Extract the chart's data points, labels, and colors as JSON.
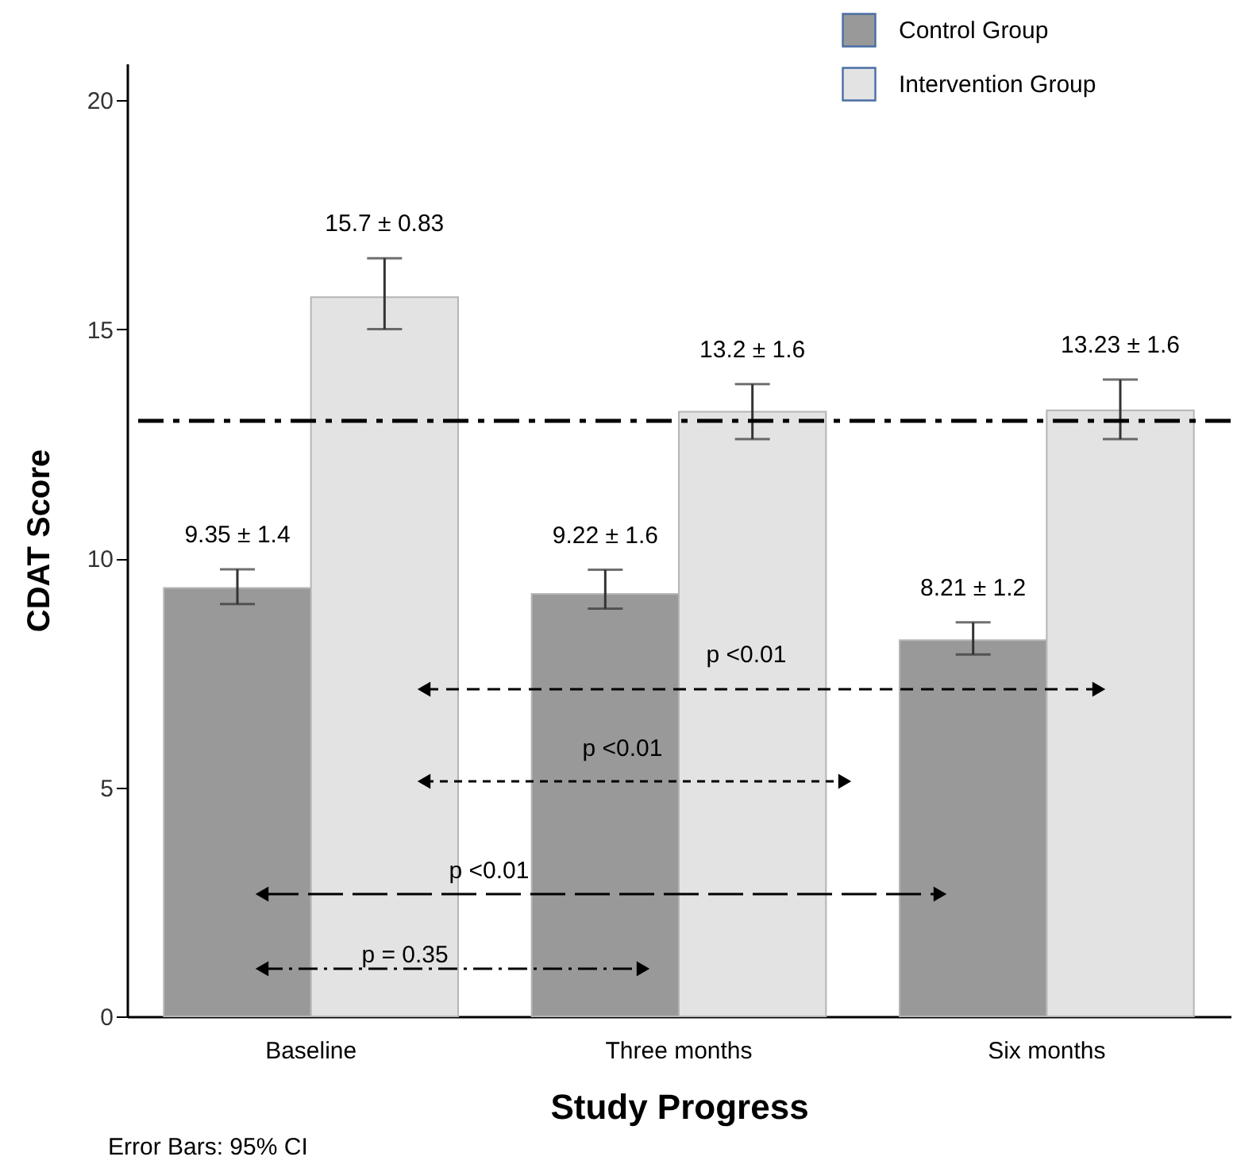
{
  "chart_data": {
    "type": "bar",
    "xlabel": "Study Progress",
    "ylabel": "CDAT Score",
    "categories": [
      "Baseline",
      "Three months",
      "Six months"
    ],
    "series": [
      {
        "name": "Control Group",
        "color": "#999999",
        "values": [
          9.35,
          9.22,
          8.21
        ],
        "errors": [
          [
            9.0,
            9.76
          ],
          [
            8.9,
            9.75
          ],
          [
            7.9,
            8.6
          ]
        ],
        "value_labels": [
          "9.35 ± 1.4",
          "9.22 ± 1.6",
          "8.21 ± 1.2"
        ]
      },
      {
        "name": "Intervention Group",
        "color": "#e3e3e3",
        "values": [
          15.7,
          13.2,
          13.23
        ],
        "errors": [
          [
            15.0,
            16.55
          ],
          [
            12.6,
            13.8
          ],
          [
            12.6,
            13.9
          ]
        ],
        "value_labels": [
          "15.7 ± 0.83",
          "13.2 ± 1.6",
          "13.23 ± 1.6"
        ]
      }
    ],
    "ylim": [
      0,
      20.8
    ],
    "yticks": [
      0,
      5,
      10,
      15,
      20
    ],
    "grid": false,
    "legend": "top right",
    "ref_lines": [
      {
        "axis": "y",
        "value": 13,
        "color": "#000000",
        "line_style": "dashed"
      }
    ],
    "annotations": [
      "p <0.01",
      "p <0.01",
      "p <0.01",
      "p = 0.35",
      "Error Bars: 95% CI"
    ]
  }
}
